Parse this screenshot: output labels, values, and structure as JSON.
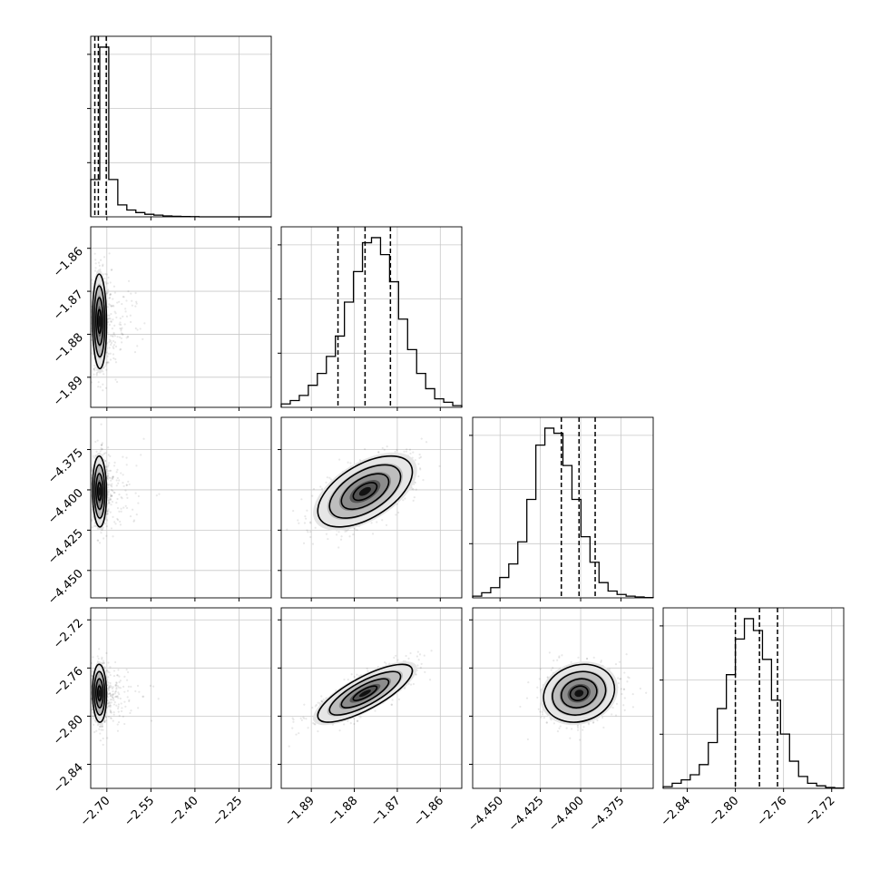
{
  "chart_data": {
    "type": "corner",
    "grid": true,
    "parameters": [
      {
        "ticks": [
          -2.7,
          -2.55,
          -2.4,
          -2.25
        ],
        "tick_labels": [
          "−2.70",
          "−2.55",
          "−2.40",
          "−2.25"
        ]
      },
      {
        "ticks": [
          -1.89,
          -1.88,
          -1.87,
          -1.86
        ],
        "tick_labels": [
          "−1.89",
          "−1.88",
          "−1.87",
          "−1.86"
        ]
      },
      {
        "ticks": [
          -4.45,
          -4.425,
          -4.4,
          -4.375
        ],
        "tick_labels": [
          "−4.450",
          "−4.425",
          "−4.400",
          "−4.375"
        ]
      },
      {
        "ticks": [
          -2.84,
          -2.8,
          -2.76,
          -2.72
        ],
        "tick_labels": [
          "−2.84",
          "−2.80",
          "−2.76",
          "−2.72"
        ]
      }
    ],
    "ranges": [
      [
        -2.755,
        -2.14
      ],
      [
        -1.897,
        -1.855
      ],
      [
        -4.467,
        -4.355
      ],
      [
        -2.86,
        -2.71
      ]
    ],
    "histograms": [
      {
        "counts": [
          0.22,
          1.0,
          0.22,
          0.07,
          0.04,
          0.025,
          0.015,
          0.01,
          0.005,
          0.003,
          0.002,
          0.001,
          0,
          0,
          0,
          0,
          0,
          0,
          0,
          0
        ],
        "quantiles": [
          -2.741,
          -2.729,
          -2.702
        ]
      },
      {
        "counts": [
          0.02,
          0.04,
          0.07,
          0.13,
          0.2,
          0.3,
          0.42,
          0.62,
          0.8,
          0.97,
          1.0,
          0.9,
          0.74,
          0.52,
          0.34,
          0.2,
          0.11,
          0.05,
          0.03,
          0.01
        ],
        "quantiles": [
          -1.8838,
          -1.8775,
          -1.8716
        ]
      },
      {
        "counts": [
          0.01,
          0.03,
          0.06,
          0.12,
          0.2,
          0.33,
          0.58,
          0.9,
          1.0,
          0.97,
          0.78,
          0.58,
          0.36,
          0.21,
          0.09,
          0.04,
          0.02,
          0.01,
          0.005,
          0.002
        ],
        "quantiles": [
          -4.412,
          -4.401,
          -4.391
        ]
      },
      {
        "counts": [
          0.01,
          0.03,
          0.05,
          0.08,
          0.14,
          0.27,
          0.47,
          0.67,
          0.88,
          1.0,
          0.93,
          0.76,
          0.52,
          0.32,
          0.16,
          0.07,
          0.03,
          0.015,
          0.005,
          0.002
        ],
        "quantiles": [
          -2.8,
          -2.78,
          -2.765
        ]
      }
    ],
    "pairs": [
      {
        "x": 0,
        "y": 1,
        "mean": [
          -2.725,
          -1.877
        ],
        "sigma": [
          0.012,
          0.0055
        ],
        "corr": -0.05,
        "skew_x": 0.12
      },
      {
        "x": 0,
        "y": 2,
        "mean": [
          -2.725,
          -4.401
        ],
        "sigma": [
          0.012,
          0.011
        ],
        "corr": -0.05,
        "skew_x": 0.12
      },
      {
        "x": 0,
        "y": 3,
        "mean": [
          -2.725,
          -2.781
        ],
        "sigma": [
          0.012,
          0.012
        ],
        "corr": -0.05,
        "skew_x": 0.12
      },
      {
        "x": 1,
        "y": 2,
        "mean": [
          -1.8775,
          -4.401
        ],
        "sigma": [
          0.0055,
          0.011
        ],
        "corr": 0.55,
        "skew_x": 0
      },
      {
        "x": 1,
        "y": 3,
        "mean": [
          -1.8775,
          -2.781
        ],
        "sigma": [
          0.0055,
          0.012
        ],
        "corr": 0.78,
        "skew_x": 0
      },
      {
        "x": 2,
        "y": 3,
        "mean": [
          -4.401,
          -2.781
        ],
        "sigma": [
          0.011,
          0.012
        ],
        "corr": 0.15,
        "skew_x": 0
      }
    ],
    "contour_levels": [
      0.5,
      1.0,
      1.5,
      2.0
    ]
  }
}
